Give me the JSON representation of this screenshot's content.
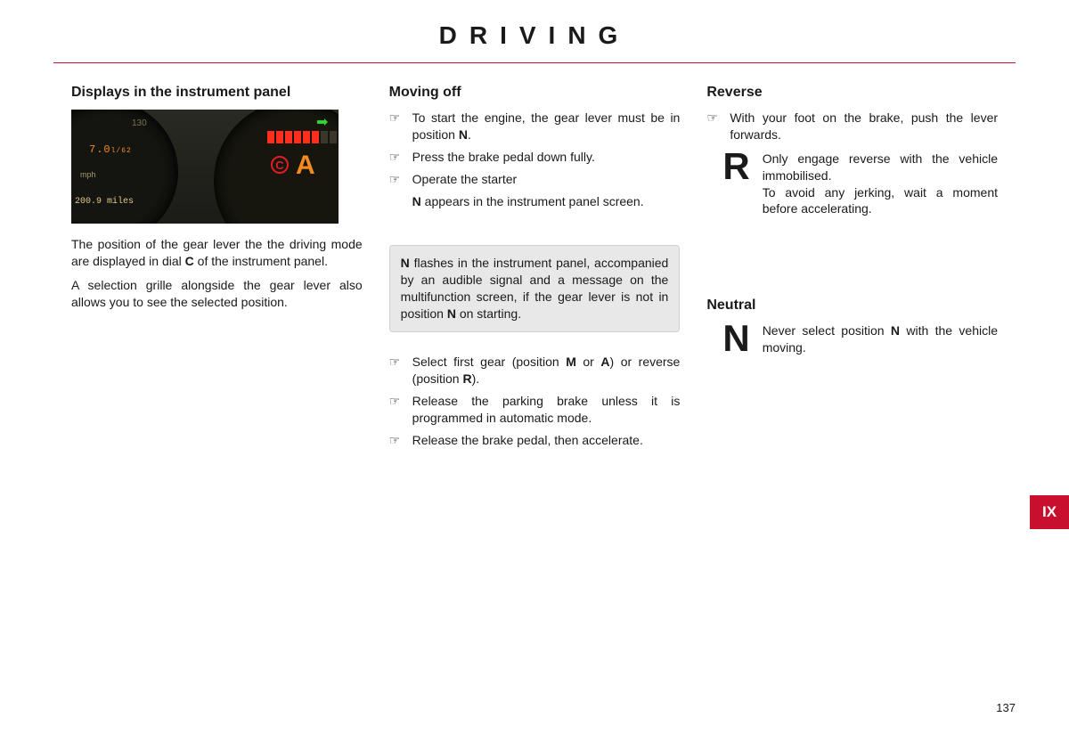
{
  "header": {
    "title": "DRIVING"
  },
  "colors": {
    "rule": "#c8102e",
    "tab_bg": "#c8102e",
    "tab_fg": "#ffffff",
    "note_bg": "#e8e8e8"
  },
  "col1": {
    "heading": "Displays in the instrument panel",
    "image": {
      "trip": "7.0",
      "trip_unit": "l/62",
      "mph_label": "mph",
      "odometer": "200.9 miles",
      "speed_mark": "130",
      "arrow_glyph": "➡",
      "c_label": "C",
      "a_label": "A",
      "bar_total": 10,
      "bar_filled": 6,
      "bar_on_color": "#ff2e1e",
      "bar_off_color": "#3a362c"
    },
    "p1_pre": "The position of the gear lever the the driving mode are displayed in dial ",
    "p1_bold": "C",
    "p1_post": " of the instrument panel.",
    "p2": "A selection grille alongside the gear lever also allows you to see the selected position."
  },
  "col2": {
    "heading": "Moving off",
    "b1_pre": "To start the engine, the gear lever must be in position ",
    "b1_bold": "N",
    "b1_post": ".",
    "b2": "Press the brake pedal down fully.",
    "b3": "Operate the starter",
    "b3_sub_bold": "N",
    "b3_sub_post": " appears in the instrument panel screen.",
    "note_bold1": "N",
    "note_mid": " flashes in the instrument panel, accompanied by an audible signal and a message on the multifunction screen, if the gear lever is not in position ",
    "note_bold2": "N",
    "note_post": " on starting.",
    "b4_pre": "Select first gear (position ",
    "b4_bold1": "M",
    "b4_mid1": " or ",
    "b4_bold2": "A",
    "b4_mid2": ") or reverse (position ",
    "b4_bold3": "R",
    "b4_post": ").",
    "b5": "Release the parking brake unless it is programmed in automatic mode.",
    "b6": "Release the brake pedal, then accelerate."
  },
  "col3": {
    "heading1": "Reverse",
    "b1": "With your foot on the brake, push the lever forwards.",
    "big_r": "R",
    "r_text1": "Only engage reverse with the vehicle immobilised.",
    "r_text2": "To avoid any jerking, wait a moment before accelerating.",
    "heading2": "Neutral",
    "big_n": "N",
    "n_pre": "Never select position ",
    "n_bold": "N",
    "n_post": " with the vehicle moving."
  },
  "tab": {
    "label": "IX"
  },
  "page_number": "137"
}
